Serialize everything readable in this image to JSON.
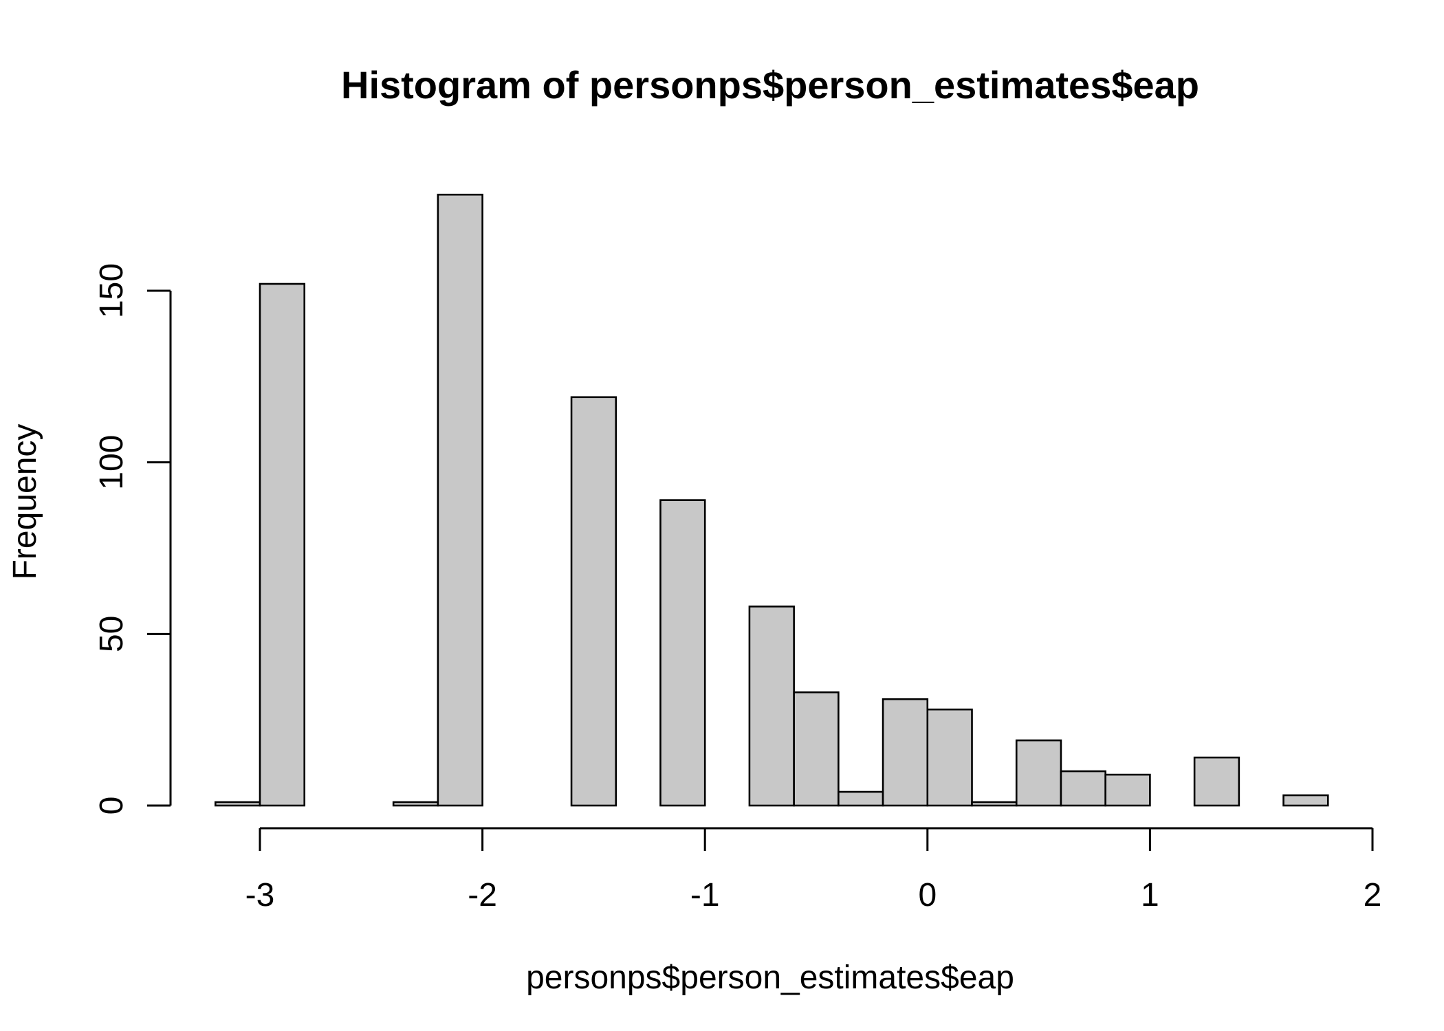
{
  "chart_data": {
    "type": "bar",
    "title": "Histogram of personps$person_estimates$eap",
    "xlabel": "personps$person_estimates$eap",
    "ylabel": "Frequency",
    "bin_edges": [
      -3.2,
      -3.0,
      -2.8,
      -2.6,
      -2.4,
      -2.2,
      -2.0,
      -1.8,
      -1.6,
      -1.4,
      -1.2,
      -1.0,
      -0.8,
      -0.6,
      -0.4,
      -0.2,
      0.0,
      0.2,
      0.4,
      0.6,
      0.8,
      1.0,
      1.2,
      1.4,
      1.6,
      1.8
    ],
    "values": [
      1,
      152,
      0,
      0,
      1,
      178,
      0,
      0,
      119,
      0,
      89,
      0,
      58,
      33,
      4,
      31,
      28,
      1,
      19,
      10,
      9,
      0,
      14,
      0,
      3
    ],
    "xlim": [
      -3.2,
      1.8
    ],
    "ylim": [
      0,
      178
    ],
    "x_ticks": [
      -3,
      -2,
      -1,
      0,
      1,
      2
    ],
    "x_tick_labels": [
      "-3",
      "-2",
      "-1",
      "0",
      "1",
      "2"
    ],
    "y_ticks": [
      0,
      50,
      100,
      150
    ],
    "y_tick_labels": [
      "0",
      "50",
      "100",
      "150"
    ],
    "bar_fill": "#c8c8c8",
    "grid": false
  }
}
